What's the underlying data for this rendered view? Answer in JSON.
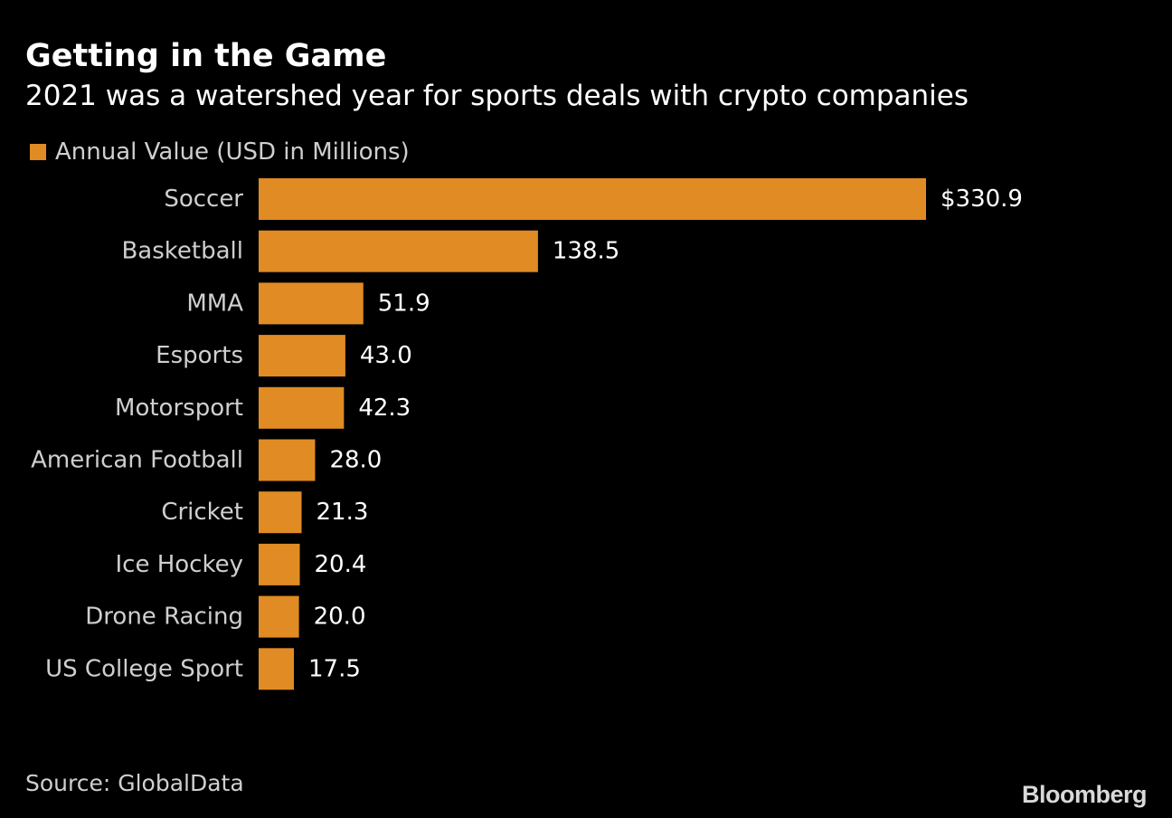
{
  "header": {
    "title": "Getting in the Game",
    "subtitle": "2021 was a watershed year for sports deals with crypto companies"
  },
  "footer": {
    "source": "Source: GlobalData",
    "logo": "Bloomberg"
  },
  "colors": {
    "background": "#000000",
    "bar": "#e08b23",
    "text": "#ffffff",
    "muted_text": "#cfcfcf"
  },
  "chart_data": {
    "type": "bar",
    "orientation": "horizontal",
    "categories": [
      "Soccer",
      "Basketball",
      "MMA",
      "Esports",
      "Motorsport",
      "American Football",
      "Cricket",
      "Ice Hockey",
      "Drone Racing",
      "US College Sport"
    ],
    "series": [
      {
        "name": "Annual Value (USD in Millions)",
        "values": [
          330.9,
          138.5,
          51.9,
          43.0,
          42.3,
          28.0,
          21.3,
          20.4,
          20.0,
          17.5
        ]
      }
    ],
    "value_labels": [
      "$330.9",
      "138.5",
      "51.9",
      "43.0",
      "42.3",
      "28.0",
      "21.3",
      "20.4",
      "20.0",
      "17.5"
    ],
    "xlim": [
      0,
      330.9
    ],
    "grid": false,
    "legend_position": "top-left"
  }
}
